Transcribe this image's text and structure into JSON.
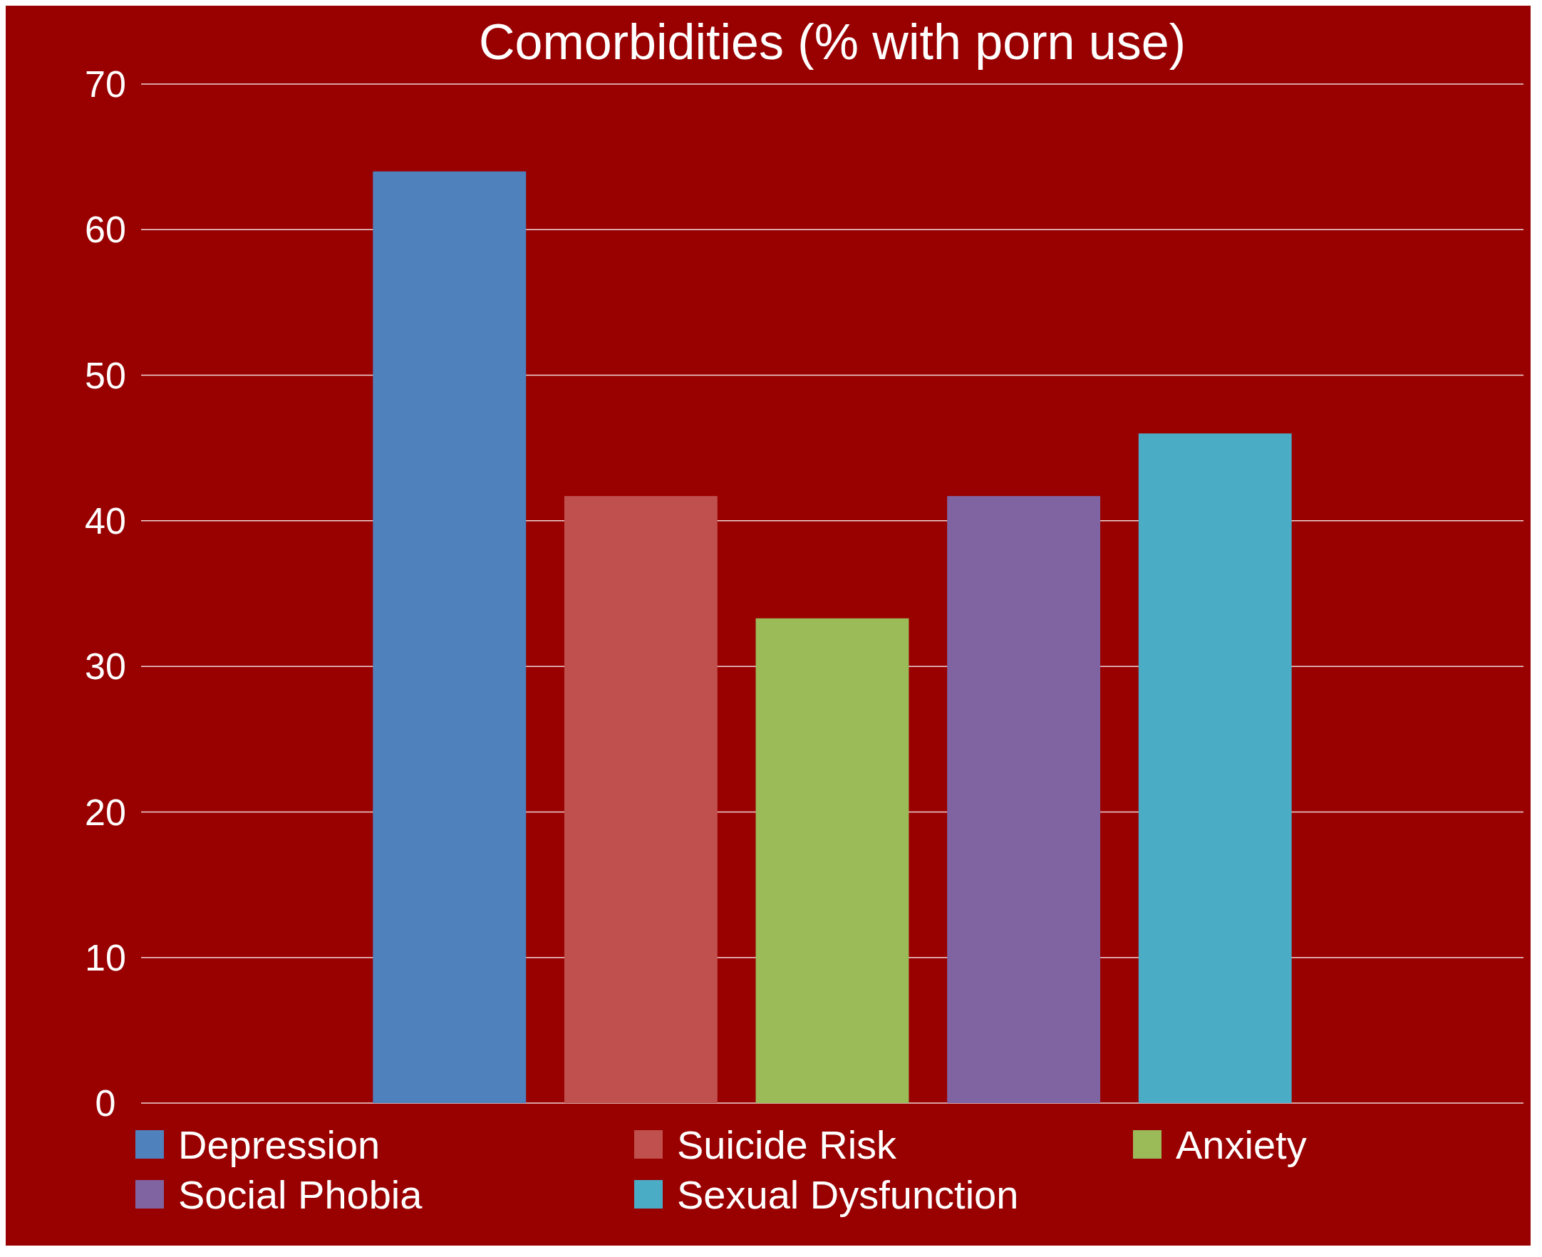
{
  "chart_data": {
    "type": "bar",
    "title": "Comorbidities (% with porn use)",
    "categories": [
      null
    ],
    "series": [
      {
        "name": "Depression",
        "color": "#4f81bd",
        "values": [
          64
        ]
      },
      {
        "name": "Suicide Risk",
        "color": "#c0504d",
        "values": [
          41.7
        ]
      },
      {
        "name": "Anxiety",
        "color": "#9bbb59",
        "values": [
          33.3
        ]
      },
      {
        "name": "Social Phobia",
        "color": "#8064a2",
        "values": [
          41.7
        ]
      },
      {
        "name": "Sexual Dysfunction",
        "color": "#4bacc6",
        "values": [
          46
        ]
      }
    ],
    "ylim": [
      0,
      70
    ],
    "yticks": [
      0,
      10,
      20,
      30,
      40,
      50,
      60,
      70
    ],
    "grid": "y",
    "legend": "bottom"
  }
}
